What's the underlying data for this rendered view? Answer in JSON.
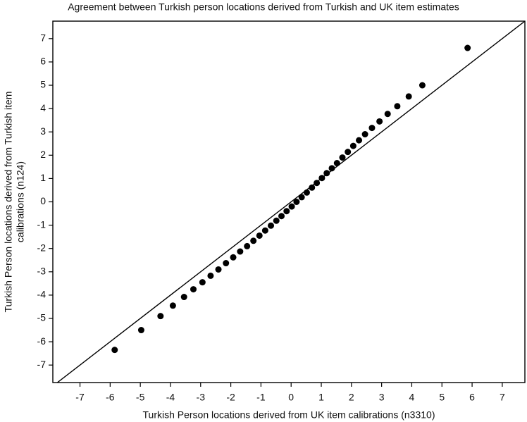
{
  "chart_data": {
    "type": "scatter",
    "title": "Agreement between Turkish person locations derived from Turkish and UK item estimates",
    "xlabel": "Turkish Person locations derived from UK item calibrations (n3310)",
    "ylabel": [
      "Turkish Person locations derived from Turkish item",
      "calibrations (n124)"
    ],
    "color": "#000000",
    "xlim": [
      -7.9,
      7.75
    ],
    "ylim": [
      -7.75,
      7.75
    ],
    "xticks": [
      -7,
      -6,
      -5,
      -4,
      -3,
      -2,
      -1,
      0,
      1,
      2,
      3,
      4,
      5,
      6,
      7
    ],
    "yticks": [
      -7,
      -6,
      -5,
      -4,
      -3,
      -2,
      -1,
      0,
      1,
      2,
      3,
      4,
      5,
      6,
      7
    ],
    "x": [
      -5.85,
      -4.97,
      -4.33,
      -3.92,
      -3.55,
      -3.24,
      -2.94,
      -2.67,
      -2.41,
      -2.16,
      -1.92,
      -1.69,
      -1.46,
      -1.25,
      -1.05,
      -0.86,
      -0.67,
      -0.49,
      -0.32,
      -0.15,
      0.02,
      0.18,
      0.35,
      0.52,
      0.69,
      0.85,
      1.02,
      1.18,
      1.35,
      1.52,
      1.7,
      1.88,
      2.06,
      2.25,
      2.45,
      2.68,
      2.93,
      3.2,
      3.52,
      3.9,
      4.35,
      5.85
    ],
    "values": [
      -6.35,
      -5.5,
      -4.9,
      -4.45,
      -4.08,
      -3.75,
      -3.45,
      -3.17,
      -2.9,
      -2.63,
      -2.38,
      -2.13,
      -1.9,
      -1.67,
      -1.45,
      -1.23,
      -1.02,
      -0.81,
      -0.61,
      -0.4,
      -0.2,
      0,
      0.2,
      0.4,
      0.61,
      0.81,
      1.02,
      1.23,
      1.44,
      1.66,
      1.9,
      2.14,
      2.4,
      2.64,
      2.9,
      3.17,
      3.45,
      3.77,
      4.1,
      4.52,
      5.0,
      6.6
    ]
  }
}
